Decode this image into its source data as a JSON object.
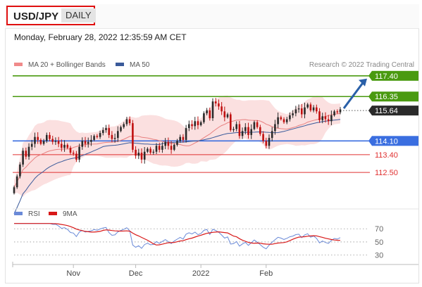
{
  "header": {
    "symbol": "USD/JPY",
    "period": "DAILY",
    "timestamp": "Monday, February 28, 2022 12:35:59 AM CET"
  },
  "colors": {
    "candle_up": "#2a2a2a",
    "candle_down": "#c01010",
    "bollinger_fill": "#fadada",
    "ma20": "#e88080",
    "ma50": "#3a5a9a",
    "resistance": "#4a9a10",
    "pivot": "#3a6ee0",
    "support": "#e03030",
    "rsi": "#6a8ad8",
    "rsi_ma": "#d81818",
    "arrow": "#2a60a8"
  },
  "chart_data": [
    {
      "type": "candlestick",
      "legend": [
        {
          "name": "MA 20 + Bollinger Bands",
          "color": "#f08a8a"
        },
        {
          "name": "MA 50",
          "color": "#3a5a9a"
        }
      ],
      "legend_placement": "top-left",
      "credit": "Research © 2022 Trading Central",
      "ylim": [
        110.9,
        117.75
      ],
      "x_ticks": [
        {
          "label": "Nov",
          "index": 20
        },
        {
          "label": "Dec",
          "index": 41
        },
        {
          "label": "2022",
          "index": 63
        },
        {
          "label": "Feb",
          "index": 85
        }
      ],
      "levels": [
        {
          "label": "117.40",
          "value": 117.4,
          "kind": "resistance",
          "tag": "filled",
          "color": "#4a9a10"
        },
        {
          "label": "116.35",
          "value": 116.35,
          "kind": "resistance",
          "tag": "filled",
          "color": "#4a9a10"
        },
        {
          "label": "115.64",
          "value": 115.64,
          "kind": "last",
          "tag": "filled",
          "color": "#2a2a2a"
        },
        {
          "label": "114.10",
          "value": 114.1,
          "kind": "pivot",
          "tag": "filled",
          "color": "#3a6ee0"
        },
        {
          "label": "113.40",
          "value": 113.4,
          "kind": "support",
          "tag": "text",
          "color": "#e03030"
        },
        {
          "label": "112.50",
          "value": 112.5,
          "kind": "support",
          "tag": "text",
          "color": "#e03030"
        }
      ],
      "arrow": {
        "from_value": 115.75,
        "to_value": 117.4,
        "direction": "up"
      },
      "close": [
        111.75,
        112.3,
        112.9,
        113.6,
        113.3,
        113.8,
        113.95,
        114.3,
        114.15,
        113.95,
        114.1,
        114.4,
        114.2,
        114.05,
        114.1,
        113.95,
        113.75,
        113.9,
        113.75,
        113.5,
        113.45,
        113.15,
        113.8,
        114.1,
        113.95,
        114.05,
        114.15,
        114.35,
        114.3,
        114.5,
        114.65,
        114.75,
        114.4,
        114.2,
        114.25,
        114.6,
        114.8,
        114.95,
        115.2,
        115.0,
        113.65,
        113.35,
        113.5,
        113.15,
        113.55,
        113.7,
        113.5,
        113.55,
        113.85,
        113.65,
        113.85,
        114.05,
        113.85,
        113.65,
        113.9,
        114.1,
        114.3,
        114.15,
        114.75,
        114.95,
        114.85,
        115.1,
        114.9,
        115.05,
        115.5,
        115.65,
        115.25,
        116.1,
        116.0,
        115.85,
        115.6,
        115.3,
        115.45,
        114.65,
        114.7,
        114.95,
        114.35,
        114.6,
        114.8,
        114.4,
        114.7,
        115.05,
        114.8,
        114.45,
        114.1,
        113.85,
        114.25,
        114.6,
        114.95,
        115.3,
        115.2,
        115.05,
        115.2,
        115.4,
        115.5,
        115.7,
        115.75,
        115.45,
        115.8,
        115.95,
        115.65,
        115.8,
        115.6,
        115.15,
        115.35,
        115.2,
        115.1,
        115.4,
        115.6,
        115.55,
        115.7
      ]
    },
    {
      "type": "line",
      "legend": [
        {
          "name": "RSI",
          "color": "#6a8ad8"
        },
        {
          "name": "9MA",
          "color": "#d81818"
        }
      ],
      "legend_placement": "top-left",
      "ylim": [
        20,
        82
      ],
      "y_ticks": [
        70,
        50,
        30
      ],
      "grid": "dotted"
    }
  ]
}
